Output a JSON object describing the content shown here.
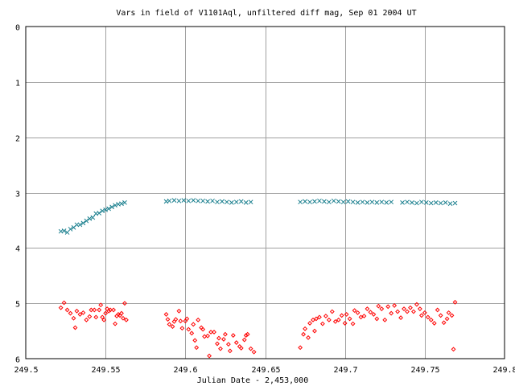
{
  "chart_data": {
    "type": "scatter",
    "title": "Vars in field of V1101Aql, unfiltered diff mag, Sep 01 2004 UT",
    "xlabel": "Julian Date - 2,453,000",
    "ylabel": "",
    "xlim": [
      249.5,
      249.8
    ],
    "ylim": [
      0,
      6
    ],
    "y_inverted": true,
    "grid": true,
    "legend": "none",
    "x_ticks": [
      {
        "value": 249.5,
        "label": "249.5"
      },
      {
        "value": 249.55,
        "label": "249.55"
      },
      {
        "value": 249.6,
        "label": "249.6"
      },
      {
        "value": 249.65,
        "label": "249.65"
      },
      {
        "value": 249.7,
        "label": "249.7"
      },
      {
        "value": 249.75,
        "label": "249.75"
      },
      {
        "value": 249.8,
        "label": "249.8"
      }
    ],
    "y_ticks": [
      {
        "value": 0,
        "label": "0"
      },
      {
        "value": 1,
        "label": "1"
      },
      {
        "value": 2,
        "label": "2"
      },
      {
        "value": 3,
        "label": "3"
      },
      {
        "value": 4,
        "label": "4"
      },
      {
        "value": 5,
        "label": "5"
      },
      {
        "value": 6,
        "label": "6"
      }
    ],
    "series": [
      {
        "marker": "diamond",
        "color": "#ff0000",
        "points": [
          [
            249.522,
            5.08
          ],
          [
            249.524,
            4.99
          ],
          [
            249.526,
            5.12
          ],
          [
            249.528,
            5.18
          ],
          [
            249.53,
            5.27
          ],
          [
            249.531,
            5.44
          ],
          [
            249.532,
            5.14
          ],
          [
            249.534,
            5.2
          ],
          [
            249.536,
            5.17
          ],
          [
            249.538,
            5.3
          ],
          [
            249.54,
            5.24
          ],
          [
            249.541,
            5.12
          ],
          [
            249.543,
            5.12
          ],
          [
            249.544,
            5.25
          ],
          [
            249.546,
            5.12
          ],
          [
            249.547,
            5.03
          ],
          [
            249.548,
            5.25
          ],
          [
            249.549,
            5.3
          ],
          [
            249.55,
            5.18
          ],
          [
            249.551,
            5.1
          ],
          [
            249.552,
            5.14
          ],
          [
            249.553,
            5.12
          ],
          [
            249.555,
            5.12
          ],
          [
            249.556,
            5.37
          ],
          [
            249.557,
            5.23
          ],
          [
            249.558,
            5.2
          ],
          [
            249.559,
            5.22
          ],
          [
            249.56,
            5.18
          ],
          [
            249.561,
            5.27
          ],
          [
            249.562,
            5.0
          ],
          [
            249.563,
            5.3
          ],
          [
            249.588,
            5.2
          ],
          [
            249.589,
            5.29
          ],
          [
            249.59,
            5.38
          ],
          [
            249.592,
            5.42
          ],
          [
            249.593,
            5.33
          ],
          [
            249.594,
            5.29
          ],
          [
            249.596,
            5.14
          ],
          [
            249.597,
            5.32
          ],
          [
            249.598,
            5.45
          ],
          [
            249.6,
            5.32
          ],
          [
            249.601,
            5.28
          ],
          [
            249.602,
            5.47
          ],
          [
            249.604,
            5.54
          ],
          [
            249.605,
            5.38
          ],
          [
            249.606,
            5.67
          ],
          [
            249.607,
            5.8
          ],
          [
            249.608,
            5.3
          ],
          [
            249.61,
            5.44
          ],
          [
            249.611,
            5.47
          ],
          [
            249.612,
            5.6
          ],
          [
            249.614,
            5.59
          ],
          [
            249.615,
            5.95
          ],
          [
            249.616,
            5.52
          ],
          [
            249.618,
            5.52
          ],
          [
            249.62,
            5.73
          ],
          [
            249.621,
            5.63
          ],
          [
            249.622,
            5.82
          ],
          [
            249.624,
            5.65
          ],
          [
            249.625,
            5.56
          ],
          [
            249.627,
            5.74
          ],
          [
            249.628,
            5.86
          ],
          [
            249.63,
            5.58
          ],
          [
            249.632,
            5.71
          ],
          [
            249.634,
            5.78
          ],
          [
            249.635,
            5.81
          ],
          [
            249.637,
            5.66
          ],
          [
            249.638,
            5.58
          ],
          [
            249.639,
            5.56
          ],
          [
            249.641,
            5.82
          ],
          [
            249.643,
            5.88
          ],
          [
            249.672,
            5.8
          ],
          [
            249.674,
            5.56
          ],
          [
            249.675,
            5.46
          ],
          [
            249.677,
            5.62
          ],
          [
            249.678,
            5.36
          ],
          [
            249.68,
            5.3
          ],
          [
            249.681,
            5.5
          ],
          [
            249.682,
            5.28
          ],
          [
            249.684,
            5.25
          ],
          [
            249.686,
            5.37
          ],
          [
            249.688,
            5.23
          ],
          [
            249.69,
            5.3
          ],
          [
            249.692,
            5.15
          ],
          [
            249.694,
            5.33
          ],
          [
            249.696,
            5.3
          ],
          [
            249.698,
            5.22
          ],
          [
            249.7,
            5.36
          ],
          [
            249.701,
            5.2
          ],
          [
            249.703,
            5.28
          ],
          [
            249.705,
            5.37
          ],
          [
            249.706,
            5.13
          ],
          [
            249.708,
            5.17
          ],
          [
            249.71,
            5.25
          ],
          [
            249.712,
            5.23
          ],
          [
            249.714,
            5.1
          ],
          [
            249.716,
            5.16
          ],
          [
            249.718,
            5.2
          ],
          [
            249.72,
            5.28
          ],
          [
            249.721,
            5.05
          ],
          [
            249.723,
            5.1
          ],
          [
            249.725,
            5.3
          ],
          [
            249.727,
            5.06
          ],
          [
            249.729,
            5.18
          ],
          [
            249.731,
            5.04
          ],
          [
            249.733,
            5.15
          ],
          [
            249.735,
            5.26
          ],
          [
            249.737,
            5.1
          ],
          [
            249.739,
            5.15
          ],
          [
            249.741,
            5.08
          ],
          [
            249.743,
            5.15
          ],
          [
            249.745,
            5.02
          ],
          [
            249.747,
            5.1
          ],
          [
            249.748,
            5.22
          ],
          [
            249.75,
            5.17
          ],
          [
            249.752,
            5.25
          ],
          [
            249.754,
            5.3
          ],
          [
            249.756,
            5.36
          ],
          [
            249.758,
            5.12
          ],
          [
            249.76,
            5.22
          ],
          [
            249.762,
            5.35
          ],
          [
            249.764,
            5.28
          ],
          [
            249.765,
            5.17
          ],
          [
            249.767,
            5.22
          ],
          [
            249.768,
            5.83
          ],
          [
            249.769,
            4.98
          ]
        ]
      },
      {
        "marker": "x",
        "color": "#1a7f8e",
        "points": [
          [
            249.522,
            3.7
          ],
          [
            249.524,
            3.69
          ],
          [
            249.526,
            3.72
          ],
          [
            249.528,
            3.66
          ],
          [
            249.53,
            3.63
          ],
          [
            249.532,
            3.58
          ],
          [
            249.534,
            3.58
          ],
          [
            249.536,
            3.55
          ],
          [
            249.538,
            3.51
          ],
          [
            249.54,
            3.47
          ],
          [
            249.542,
            3.45
          ],
          [
            249.544,
            3.38
          ],
          [
            249.546,
            3.37
          ],
          [
            249.548,
            3.33
          ],
          [
            249.55,
            3.31
          ],
          [
            249.552,
            3.29
          ],
          [
            249.554,
            3.26
          ],
          [
            249.556,
            3.23
          ],
          [
            249.558,
            3.21
          ],
          [
            249.56,
            3.2
          ],
          [
            249.562,
            3.18
          ],
          [
            249.588,
            3.16
          ],
          [
            249.59,
            3.15
          ],
          [
            249.593,
            3.14
          ],
          [
            249.596,
            3.15
          ],
          [
            249.599,
            3.14
          ],
          [
            249.602,
            3.15
          ],
          [
            249.605,
            3.14
          ],
          [
            249.608,
            3.15
          ],
          [
            249.611,
            3.15
          ],
          [
            249.614,
            3.16
          ],
          [
            249.617,
            3.15
          ],
          [
            249.62,
            3.17
          ],
          [
            249.623,
            3.16
          ],
          [
            249.626,
            3.17
          ],
          [
            249.629,
            3.18
          ],
          [
            249.632,
            3.17
          ],
          [
            249.635,
            3.16
          ],
          [
            249.638,
            3.18
          ],
          [
            249.641,
            3.17
          ],
          [
            249.672,
            3.17
          ],
          [
            249.675,
            3.16
          ],
          [
            249.678,
            3.17
          ],
          [
            249.681,
            3.16
          ],
          [
            249.684,
            3.15
          ],
          [
            249.687,
            3.16
          ],
          [
            249.69,
            3.17
          ],
          [
            249.693,
            3.15
          ],
          [
            249.696,
            3.16
          ],
          [
            249.699,
            3.17
          ],
          [
            249.702,
            3.16
          ],
          [
            249.705,
            3.17
          ],
          [
            249.708,
            3.18
          ],
          [
            249.711,
            3.17
          ],
          [
            249.714,
            3.18
          ],
          [
            249.717,
            3.17
          ],
          [
            249.72,
            3.18
          ],
          [
            249.723,
            3.17
          ],
          [
            249.726,
            3.18
          ],
          [
            249.729,
            3.17
          ],
          [
            249.736,
            3.18
          ],
          [
            249.739,
            3.17
          ],
          [
            249.742,
            3.18
          ],
          [
            249.745,
            3.19
          ],
          [
            249.748,
            3.17
          ],
          [
            249.751,
            3.18
          ],
          [
            249.754,
            3.19
          ],
          [
            249.757,
            3.18
          ],
          [
            249.76,
            3.19
          ],
          [
            249.763,
            3.18
          ],
          [
            249.766,
            3.2
          ],
          [
            249.769,
            3.19
          ]
        ]
      }
    ]
  }
}
